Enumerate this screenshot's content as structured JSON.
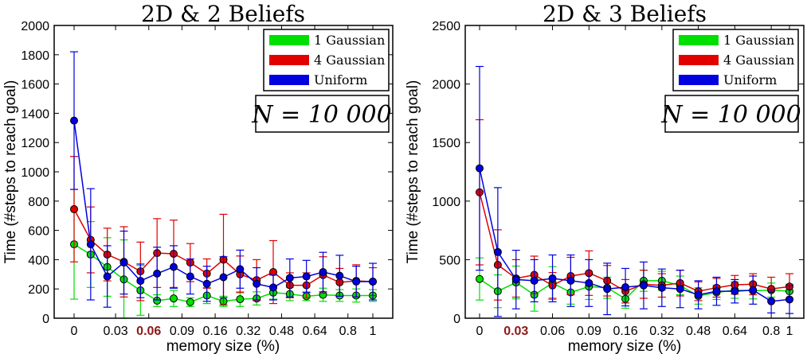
{
  "chart_data": [
    {
      "type": "line",
      "title": "2D & 2 Beliefs",
      "xlabel": "memory size (%)",
      "ylabel": "Time (#steps to reach goal)",
      "ylim": [
        0,
        2000
      ],
      "yticks": [
        0,
        200,
        400,
        600,
        800,
        1000,
        1200,
        1400,
        1600,
        1800,
        2000
      ],
      "xticks": [
        {
          "index": 0,
          "label": "0"
        },
        {
          "index": 2.5,
          "label": "0.03"
        },
        {
          "index": 4.5,
          "label": "0.06",
          "highlight": true
        },
        {
          "index": 6.5,
          "label": "0.09"
        },
        {
          "index": 8.5,
          "label": "0.16"
        },
        {
          "index": 10.5,
          "label": "0.32"
        },
        {
          "index": 12.5,
          "label": "0.48"
        },
        {
          "index": 14.5,
          "label": "0.64"
        },
        {
          "index": 16.5,
          "label": "0.8"
        },
        {
          "index": 18,
          "label": "1"
        }
      ],
      "n_points": 19,
      "annotation": "N = 10 000",
      "series": [
        {
          "name": "1 Gaussian",
          "color": "#00e000",
          "values": [
            505,
            435,
            350,
            265,
            190,
            120,
            135,
            110,
            155,
            115,
            130,
            135,
            175,
            165,
            150,
            160,
            155,
            155,
            155
          ],
          "errors": [
            375,
            225,
            200,
            270,
            170,
            40,
            55,
            30,
            55,
            35,
            50,
            45,
            45,
            45,
            30,
            45,
            40,
            45,
            40
          ]
        },
        {
          "name": "4 Gaussian",
          "color": "#e00000",
          "values": [
            745,
            535,
            435,
            385,
            320,
            445,
            440,
            380,
            305,
            400,
            300,
            260,
            315,
            225,
            225,
            295,
            245,
            255,
            250
          ],
          "errors": [
            360,
            225,
            180,
            240,
            200,
            235,
            230,
            130,
            100,
            310,
            125,
            140,
            215,
            85,
            85,
            125,
            95,
            110,
            95
          ]
        },
        {
          "name": "Uniform",
          "color": "#0000e0",
          "values": [
            1350,
            505,
            285,
            380,
            255,
            305,
            350,
            285,
            235,
            280,
            335,
            235,
            210,
            275,
            285,
            315,
            290,
            250,
            250
          ],
          "errors": [
            470,
            380,
            210,
            215,
            115,
            180,
            145,
            120,
            120,
            140,
            130,
            110,
            85,
            130,
            110,
            135,
            140,
            105,
            125
          ]
        }
      ]
    },
    {
      "type": "line",
      "title": "2D & 3 Beliefs",
      "xlabel": "memory size (%)",
      "ylabel": "Time (#steps to reach goal)",
      "ylim": [
        0,
        2500
      ],
      "yticks": [
        0,
        500,
        1000,
        1500,
        2000,
        2500
      ],
      "xticks": [
        {
          "index": 0,
          "label": "0"
        },
        {
          "index": 2,
          "label": "0.03",
          "highlight": true
        },
        {
          "index": 4,
          "label": "0.06"
        },
        {
          "index": 6,
          "label": "0.09"
        },
        {
          "index": 8,
          "label": "0.16"
        },
        {
          "index": 10,
          "label": "0.32"
        },
        {
          "index": 12,
          "label": "0.48"
        },
        {
          "index": 14,
          "label": "0.64"
        },
        {
          "index": 16,
          "label": "0.8"
        },
        {
          "index": 17,
          "label": "1"
        }
      ],
      "n_points": 18,
      "annotation": "N = 10 000",
      "series": [
        {
          "name": "1 Gaussian",
          "color": "#00e000",
          "values": [
            335,
            230,
            305,
            200,
            300,
            220,
            270,
            260,
            165,
            320,
            320,
            280,
            190,
            220,
            240,
            235,
            240,
            230
          ],
          "errors": [
            180,
            140,
            140,
            140,
            140,
            100,
            110,
            90,
            80,
            90,
            80,
            80,
            70,
            60,
            70,
            70,
            60,
            60
          ]
        },
        {
          "name": "4 Gaussian",
          "color": "#e00000",
          "values": [
            1075,
            455,
            340,
            370,
            280,
            360,
            385,
            320,
            230,
            290,
            280,
            300,
            230,
            260,
            285,
            290,
            250,
            270
          ],
          "errors": [
            620,
            300,
            160,
            160,
            110,
            160,
            190,
            130,
            100,
            120,
            100,
            110,
            80,
            80,
            80,
            90,
            100,
            110
          ]
        },
        {
          "name": "Uniform",
          "color": "#0000e0",
          "values": [
            1280,
            565,
            330,
            320,
            340,
            320,
            300,
            250,
            265,
            280,
            260,
            250,
            200,
            230,
            230,
            240,
            145,
            160
          ],
          "errors": [
            870,
            550,
            250,
            180,
            200,
            220,
            200,
            220,
            160,
            200,
            160,
            160,
            120,
            120,
            100,
            120,
            100,
            120
          ]
        }
      ]
    }
  ]
}
